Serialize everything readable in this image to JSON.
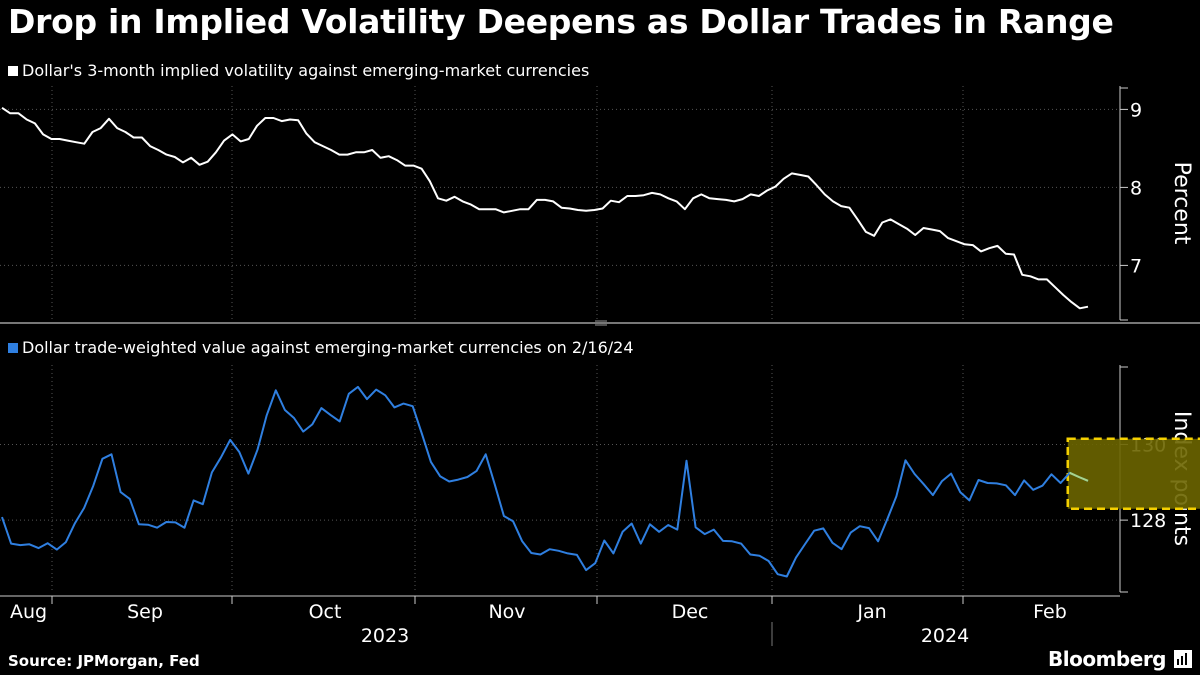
{
  "header": {
    "title": "Drop in Implied Volatility Deepens as Dollar Trades in Range"
  },
  "footer": {
    "source": "Source: JPMorgan, Fed",
    "brand": "Bloomberg"
  },
  "colors": {
    "background": "#000000",
    "series_top": "#ffffff",
    "series_bottom": "#2f7fe0",
    "highlight_fill": "#6b6500",
    "highlight_border": "#f5d000",
    "grid": "#666666"
  },
  "icons": {
    "brand_logo": "bloomberg-terminal-icon"
  },
  "chart_data": [
    {
      "type": "line",
      "legend": "Dollar's 3-month implied volatility against emerging-market currencies",
      "ylabel": "Percent",
      "yticks": [
        7,
        8,
        9
      ],
      "ylim": [
        6.3,
        9.3
      ],
      "grid": true,
      "axis_side": "right",
      "series": [
        {
          "values": [
            9.02,
            8.95,
            8.95,
            8.87,
            8.82,
            8.68,
            8.62,
            8.62,
            8.6,
            8.58,
            8.56,
            8.71,
            8.76,
            8.88,
            8.76,
            8.71,
            8.64,
            8.64,
            8.53,
            8.48,
            8.42,
            8.39,
            8.32,
            8.38,
            8.29,
            8.33,
            8.45,
            8.6,
            8.68,
            8.59,
            8.62,
            8.79,
            8.89,
            8.89,
            8.85,
            8.87,
            8.86,
            8.69,
            8.58,
            8.53,
            8.48,
            8.42,
            8.42,
            8.45,
            8.45,
            8.48,
            8.38,
            8.4,
            8.35,
            8.28,
            8.28,
            8.24,
            8.08,
            7.86,
            7.83,
            7.88,
            7.82,
            7.78,
            7.72,
            7.72,
            7.72,
            7.68,
            7.7,
            7.72,
            7.72,
            7.84,
            7.84,
            7.82,
            7.74,
            7.73,
            7.71,
            7.7,
            7.71,
            7.73,
            7.83,
            7.81,
            7.89,
            7.89,
            7.9,
            7.93,
            7.91,
            7.86,
            7.82,
            7.72,
            7.86,
            7.91,
            7.86,
            7.85,
            7.84,
            7.82,
            7.85,
            7.91,
            7.89,
            7.96,
            8.01,
            8.11,
            8.18,
            8.16,
            8.14,
            8.03,
            7.91,
            7.82,
            7.76,
            7.74,
            7.59,
            7.43,
            7.38,
            7.55,
            7.59,
            7.53,
            7.47,
            7.39,
            7.48,
            7.46,
            7.44,
            7.35,
            7.31,
            7.27,
            7.26,
            7.18,
            7.22,
            7.25,
            7.15,
            7.14,
            6.88,
            6.86,
            6.82,
            6.82,
            6.72,
            6.62,
            6.53,
            6.45,
            6.47
          ]
        }
      ]
    },
    {
      "type": "line",
      "legend": "Dollar trade-weighted value against emerging-market currencies on 2/16/24",
      "ylabel": "Index points",
      "yticks": [
        128,
        130
      ],
      "ylim": [
        126.1,
        132.1
      ],
      "grid": true,
      "axis_side": "right",
      "highlight_range": {
        "x_from": 117,
        "x_to": 134,
        "y_from": 128.3,
        "y_to": 130.15
      },
      "series": [
        {
          "values": [
            128.08,
            127.38,
            127.34,
            127.36,
            127.26,
            127.39,
            127.22,
            127.42,
            127.92,
            128.32,
            128.91,
            129.62,
            129.74,
            128.74,
            128.56,
            127.89,
            127.88,
            127.8,
            127.95,
            127.94,
            127.8,
            128.52,
            128.42,
            129.26,
            129.66,
            130.12,
            129.8,
            129.23,
            129.86,
            130.77,
            131.43,
            130.91,
            130.7,
            130.34,
            130.53,
            130.96,
            130.78,
            130.61,
            131.34,
            131.52,
            131.2,
            131.45,
            131.3,
            130.98,
            131.08,
            131.01,
            130.29,
            129.54,
            129.16,
            129.02,
            129.07,
            129.14,
            129.3,
            129.74,
            128.94,
            128.11,
            127.97,
            127.44,
            127.13,
            127.09,
            127.23,
            127.19,
            127.12,
            127.08,
            126.68,
            126.86,
            127.46,
            127.12,
            127.69,
            127.91,
            127.38,
            127.89,
            127.69,
            127.87,
            127.75,
            129.57,
            127.81,
            127.63,
            127.75,
            127.45,
            127.44,
            127.38,
            127.09,
            127.06,
            126.92,
            126.57,
            126.51,
            127.01,
            127.37,
            127.72,
            127.78,
            127.4,
            127.23,
            127.67,
            127.84,
            127.79,
            127.44,
            128.02,
            128.63,
            129.58,
            129.22,
            128.95,
            128.66,
            129.03,
            129.23,
            128.74,
            128.52,
            129.06,
            128.98,
            128.97,
            128.92,
            128.66,
            129.05,
            128.8,
            128.91,
            129.21,
            128.98,
            129.25,
            129.14,
            129.04
          ]
        }
      ]
    }
  ],
  "x_axis": {
    "months": [
      "Aug",
      "Sep",
      "Oct",
      "Nov",
      "Dec",
      "Jan",
      "Feb"
    ],
    "years": [
      "2023",
      "2024"
    ]
  }
}
